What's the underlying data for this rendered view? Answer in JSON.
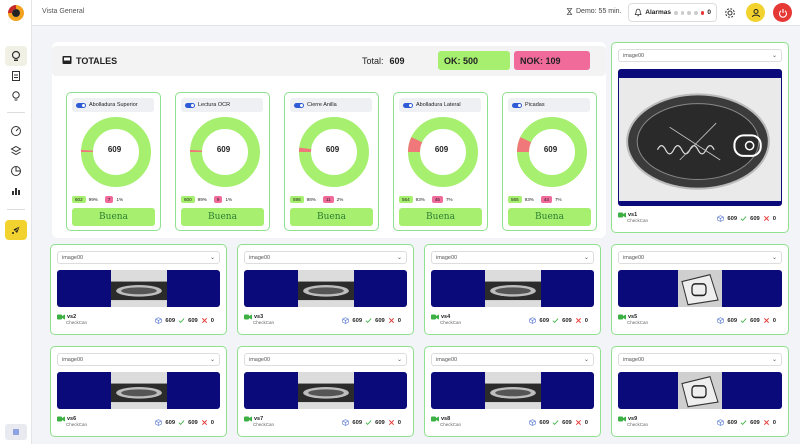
{
  "header": {
    "title": "Vista General",
    "demo": "Demo: 55 min.",
    "alarms_label": "Alarmas",
    "alarms_count": "0"
  },
  "totals": {
    "title": "TOTALES",
    "total_label": "Total:",
    "total_value": "609",
    "ok_label": "OK: 500",
    "nok_label": "NOK: 109"
  },
  "metrics": [
    {
      "name": "Abolladura Superior",
      "total": "609",
      "ok": "602",
      "ok_pct": "99%",
      "nok": "7",
      "nok_pct": "1%",
      "status": "Buena",
      "nok_fraction": 0.01
    },
    {
      "name": "Lectura OCR",
      "total": "609",
      "ok": "600",
      "ok_pct": "99%",
      "nok": "9",
      "nok_pct": "1%",
      "status": "Buena",
      "nok_fraction": 0.01
    },
    {
      "name": "Cierre Anilla",
      "total": "609",
      "ok": "598",
      "ok_pct": "98%",
      "nok": "11",
      "nok_pct": "2%",
      "status": "Buena",
      "nok_fraction": 0.02
    },
    {
      "name": "Abolladura Lateral",
      "total": "609",
      "ok": "564",
      "ok_pct": "93%",
      "nok": "45",
      "nok_pct": "7%",
      "status": "Buena",
      "nok_fraction": 0.07
    },
    {
      "name": "Picadas",
      "total": "609",
      "ok": "565",
      "ok_pct": "93%",
      "nok": "44",
      "nok_pct": "7%",
      "status": "Buena",
      "nok_fraction": 0.07
    }
  ],
  "cameras": [
    {
      "select": "image00",
      "name": "vs1",
      "sub": "CheckCan",
      "total": "609",
      "ok": "609",
      "nok": "0"
    },
    {
      "select": "image00",
      "name": "vs2",
      "sub": "CheckCan",
      "total": "609",
      "ok": "609",
      "nok": "0"
    },
    {
      "select": "image00",
      "name": "vs3",
      "sub": "CheckCan",
      "total": "609",
      "ok": "609",
      "nok": "0"
    },
    {
      "select": "image00",
      "name": "vs4",
      "sub": "CheckCan",
      "total": "609",
      "ok": "609",
      "nok": "0"
    },
    {
      "select": "image00",
      "name": "vs5",
      "sub": "CheckCan",
      "total": "609",
      "ok": "609",
      "nok": "0"
    },
    {
      "select": "image00",
      "name": "vs6",
      "sub": "CheckCan",
      "total": "609",
      "ok": "609",
      "nok": "0"
    },
    {
      "select": "image00",
      "name": "vs7",
      "sub": "CheckCan",
      "total": "609",
      "ok": "609",
      "nok": "0"
    },
    {
      "select": "image00",
      "name": "vs8",
      "sub": "CheckCan",
      "total": "609",
      "ok": "609",
      "nok": "0"
    },
    {
      "select": "image00",
      "name": "vs9",
      "sub": "CheckCan",
      "total": "609",
      "ok": "609",
      "nok": "0"
    }
  ],
  "colors": {
    "ok": "#a6ef6f",
    "nok": "#f06a9a",
    "accent": "#f2d22e",
    "danger": "#e53935",
    "panel_border": "#8fe18f",
    "screen": "#0a0a7a"
  }
}
